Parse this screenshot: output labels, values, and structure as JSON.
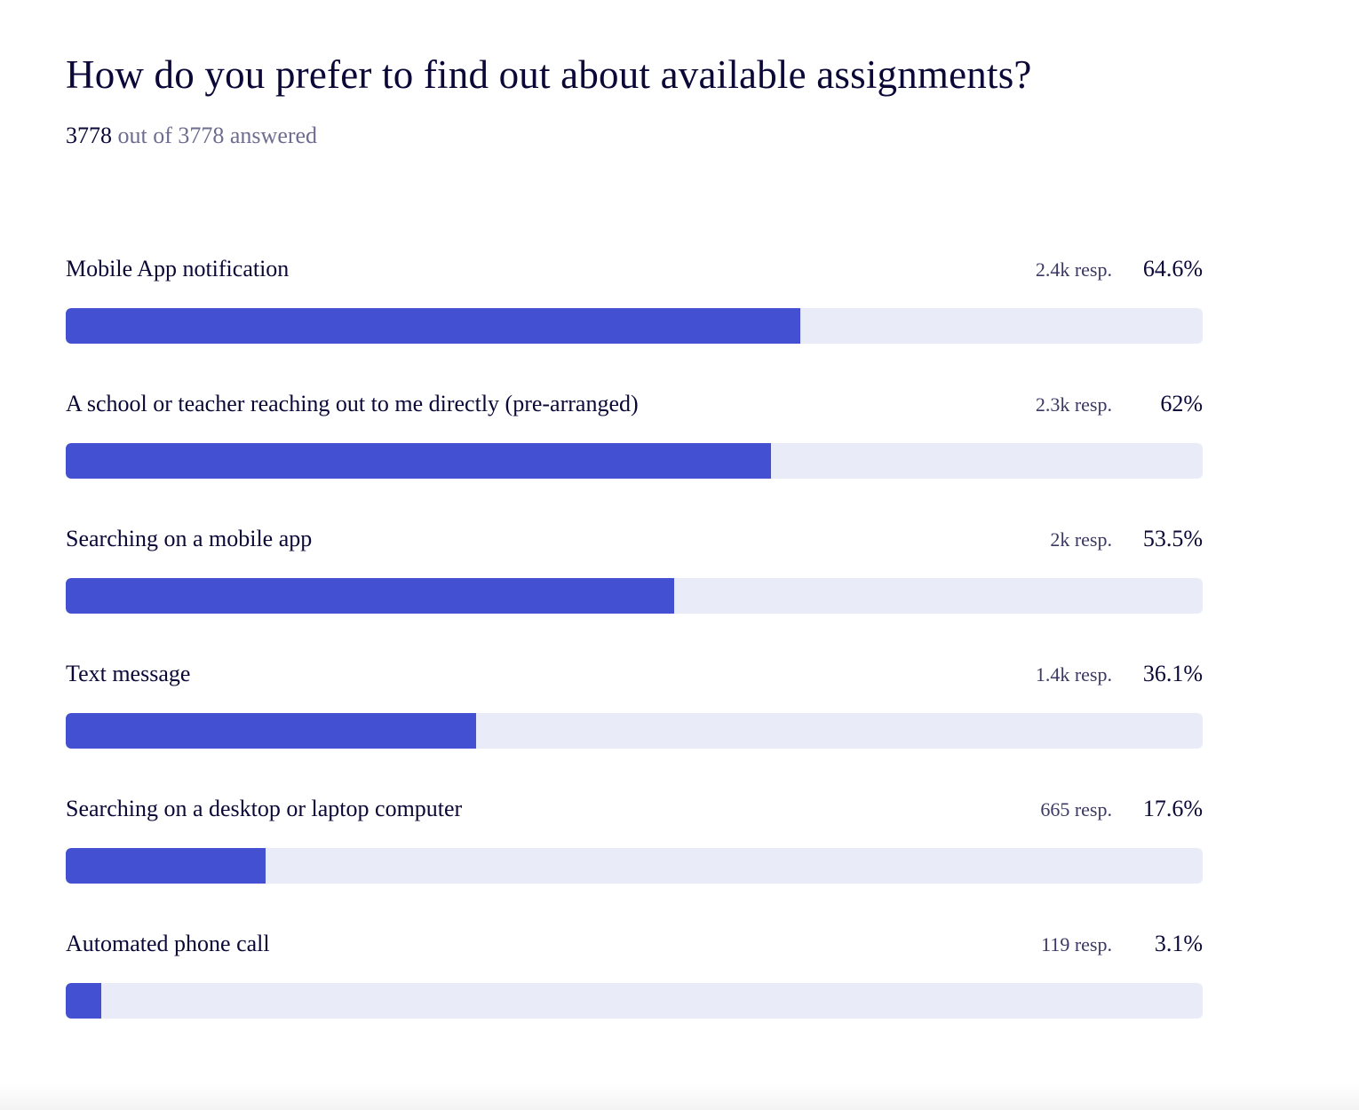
{
  "title": "How do you prefer to find out about available assignments?",
  "answered": {
    "count": "3778",
    "rest": "out of 3778 answered"
  },
  "colors": {
    "fill": "#4250d1",
    "track": "#e9ebf8"
  },
  "chart_data": {
    "type": "bar",
    "orientation": "horizontal",
    "title": "How do you prefer to find out about available assignments?",
    "categories": [
      "Mobile App notification",
      "A school or teacher reaching out to me directly (pre-arranged)",
      "Searching on a mobile app",
      "Text message",
      "Searching on a desktop or laptop computer",
      "Automated phone call"
    ],
    "values": [
      64.6,
      62,
      53.5,
      36.1,
      17.6,
      3.1
    ],
    "responses": [
      "2.4k resp.",
      "2.3k resp.",
      "2k resp.",
      "1.4k resp.",
      "665 resp.",
      "119 resp."
    ],
    "percent_labels": [
      "64.6%",
      "62%",
      "53.5%",
      "36.1%",
      "17.6%",
      "3.1%"
    ],
    "xlim": [
      0,
      100
    ]
  }
}
